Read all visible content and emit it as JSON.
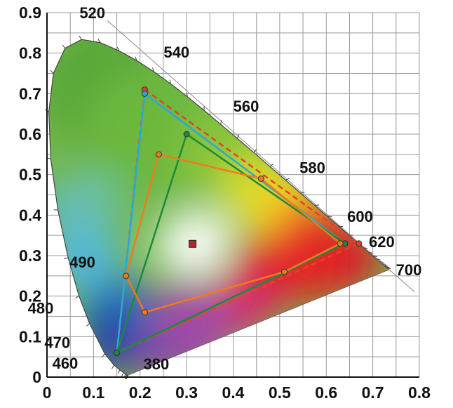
{
  "chart_data": {
    "type": "scatter",
    "title": "",
    "xlabel": "",
    "ylabel": "",
    "xlim": [
      0,
      0.8
    ],
    "ylim": [
      0,
      0.9
    ],
    "x_ticks": [
      "0",
      "0.1",
      "0.2",
      "0.3",
      "0.4",
      "0.5",
      "0.6",
      "0.7",
      "0.8"
    ],
    "y_ticks": [
      "0",
      "0.1",
      "0.2",
      "0.3",
      "0.4",
      "0.5",
      "0.6",
      "0.7",
      "0.8",
      "0.9"
    ],
    "grid": true,
    "spectral_locus": [
      [
        0.1741,
        0.005
      ],
      [
        0.1738,
        0.0049
      ],
      [
        0.1736,
        0.0049
      ],
      [
        0.1733,
        0.0048
      ],
      [
        0.1726,
        0.0048
      ],
      [
        0.1714,
        0.0051
      ],
      [
        0.1689,
        0.0069
      ],
      [
        0.1644,
        0.0109
      ],
      [
        0.1566,
        0.0177
      ],
      [
        0.144,
        0.0297
      ],
      [
        0.1241,
        0.0578
      ],
      [
        0.0913,
        0.1327
      ],
      [
        0.0687,
        0.2007
      ],
      [
        0.0454,
        0.295
      ],
      [
        0.0235,
        0.4127
      ],
      [
        0.0082,
        0.5384
      ],
      [
        0.0039,
        0.6548
      ],
      [
        0.0139,
        0.7502
      ],
      [
        0.0389,
        0.812
      ],
      [
        0.0743,
        0.8338
      ],
      [
        0.1142,
        0.8262
      ],
      [
        0.1547,
        0.8059
      ],
      [
        0.1929,
        0.7816
      ],
      [
        0.2296,
        0.7543
      ],
      [
        0.2658,
        0.7243
      ],
      [
        0.3016,
        0.6923
      ],
      [
        0.3373,
        0.6589
      ],
      [
        0.3731,
        0.6245
      ],
      [
        0.4087,
        0.5896
      ],
      [
        0.4441,
        0.5547
      ],
      [
        0.4788,
        0.5202
      ],
      [
        0.5125,
        0.4866
      ],
      [
        0.5448,
        0.4544
      ],
      [
        0.5752,
        0.4242
      ],
      [
        0.6029,
        0.3965
      ],
      [
        0.627,
        0.3725
      ],
      [
        0.6482,
        0.3514
      ],
      [
        0.6658,
        0.334
      ],
      [
        0.6801,
        0.3197
      ],
      [
        0.6915,
        0.3083
      ],
      [
        0.7006,
        0.2993
      ],
      [
        0.7079,
        0.292
      ],
      [
        0.714,
        0.2859
      ],
      [
        0.719,
        0.2809
      ],
      [
        0.723,
        0.277
      ],
      [
        0.726,
        0.274
      ],
      [
        0.7283,
        0.2717
      ],
      [
        0.73,
        0.27
      ],
      [
        0.7347,
        0.2653
      ]
    ],
    "wavelength_labels": [
      {
        "text": "380",
        "x": 0.1741,
        "y": 0.005
      },
      {
        "text": "460",
        "x": 0.144,
        "y": 0.0297
      },
      {
        "text": "470",
        "x": 0.1241,
        "y": 0.0578
      },
      {
        "text": "480",
        "x": 0.0913,
        "y": 0.1327
      },
      {
        "text": "490",
        "x": 0.0454,
        "y": 0.295
      },
      {
        "text": "520",
        "x": 0.0743,
        "y": 0.8338
      },
      {
        "text": "540",
        "x": 0.2296,
        "y": 0.7543
      },
      {
        "text": "560",
        "x": 0.3731,
        "y": 0.6245
      },
      {
        "text": "580",
        "x": 0.5125,
        "y": 0.4866
      },
      {
        "text": "600",
        "x": 0.627,
        "y": 0.3725
      },
      {
        "text": "620",
        "x": 0.6915,
        "y": 0.3083
      },
      {
        "text": "700",
        "x": 0.7347,
        "y": 0.2653
      }
    ],
    "series": [
      {
        "color": "#e8402a",
        "style": "dashed",
        "points": [
          [
            0.21,
            0.71
          ],
          [
            0.67,
            0.33
          ],
          [
            0.15,
            0.06
          ]
        ]
      },
      {
        "color": "#2aa8d8",
        "style": "solid",
        "points": [
          [
            0.21,
            0.7
          ],
          [
            0.64,
            0.33
          ],
          [
            0.15,
            0.06
          ]
        ]
      },
      {
        "color": "#1a8a3a",
        "style": "solid",
        "points": [
          [
            0.3,
            0.6
          ],
          [
            0.64,
            0.33
          ],
          [
            0.15,
            0.06
          ]
        ]
      },
      {
        "color": "#f07a1a",
        "style": "solid",
        "points": [
          [
            0.24,
            0.55
          ],
          [
            0.46,
            0.49
          ],
          [
            0.63,
            0.33
          ],
          [
            0.51,
            0.26
          ],
          [
            0.21,
            0.16
          ],
          [
            0.17,
            0.25
          ]
        ]
      }
    ],
    "white_point": {
      "x": 0.3127,
      "y": 0.329,
      "color": "#b02a2a"
    },
    "colors": {
      "grid": "#999999",
      "locus_edge": "#444444",
      "white_point": "#b02a2a"
    }
  }
}
